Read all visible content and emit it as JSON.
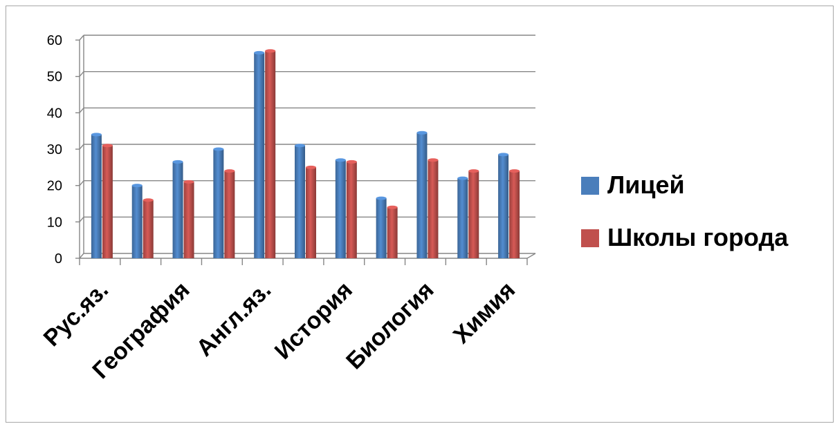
{
  "chart_data": {
    "type": "bar",
    "categories": [
      "Рус.яз.",
      "",
      "География",
      "",
      "Англ.яз.",
      "",
      "История",
      "",
      "Биология",
      "",
      "Химия"
    ],
    "series": [
      {
        "name": "Лицей",
        "color": "#4a7ebb",
        "values": [
          34,
          20,
          26.5,
          30,
          56.5,
          31,
          27,
          16.5,
          34.5,
          22,
          28.5
        ]
      },
      {
        "name": "Школы города",
        "color": "#c0504d",
        "values": [
          31,
          16,
          21,
          24,
          57,
          25,
          26.5,
          14,
          27,
          24,
          24
        ]
      }
    ],
    "y_ticks": [
      "0",
      "10",
      "20",
      "30",
      "40",
      "50",
      "60"
    ],
    "ylim": [
      0,
      60
    ],
    "grid": true,
    "legend_position": "right"
  }
}
